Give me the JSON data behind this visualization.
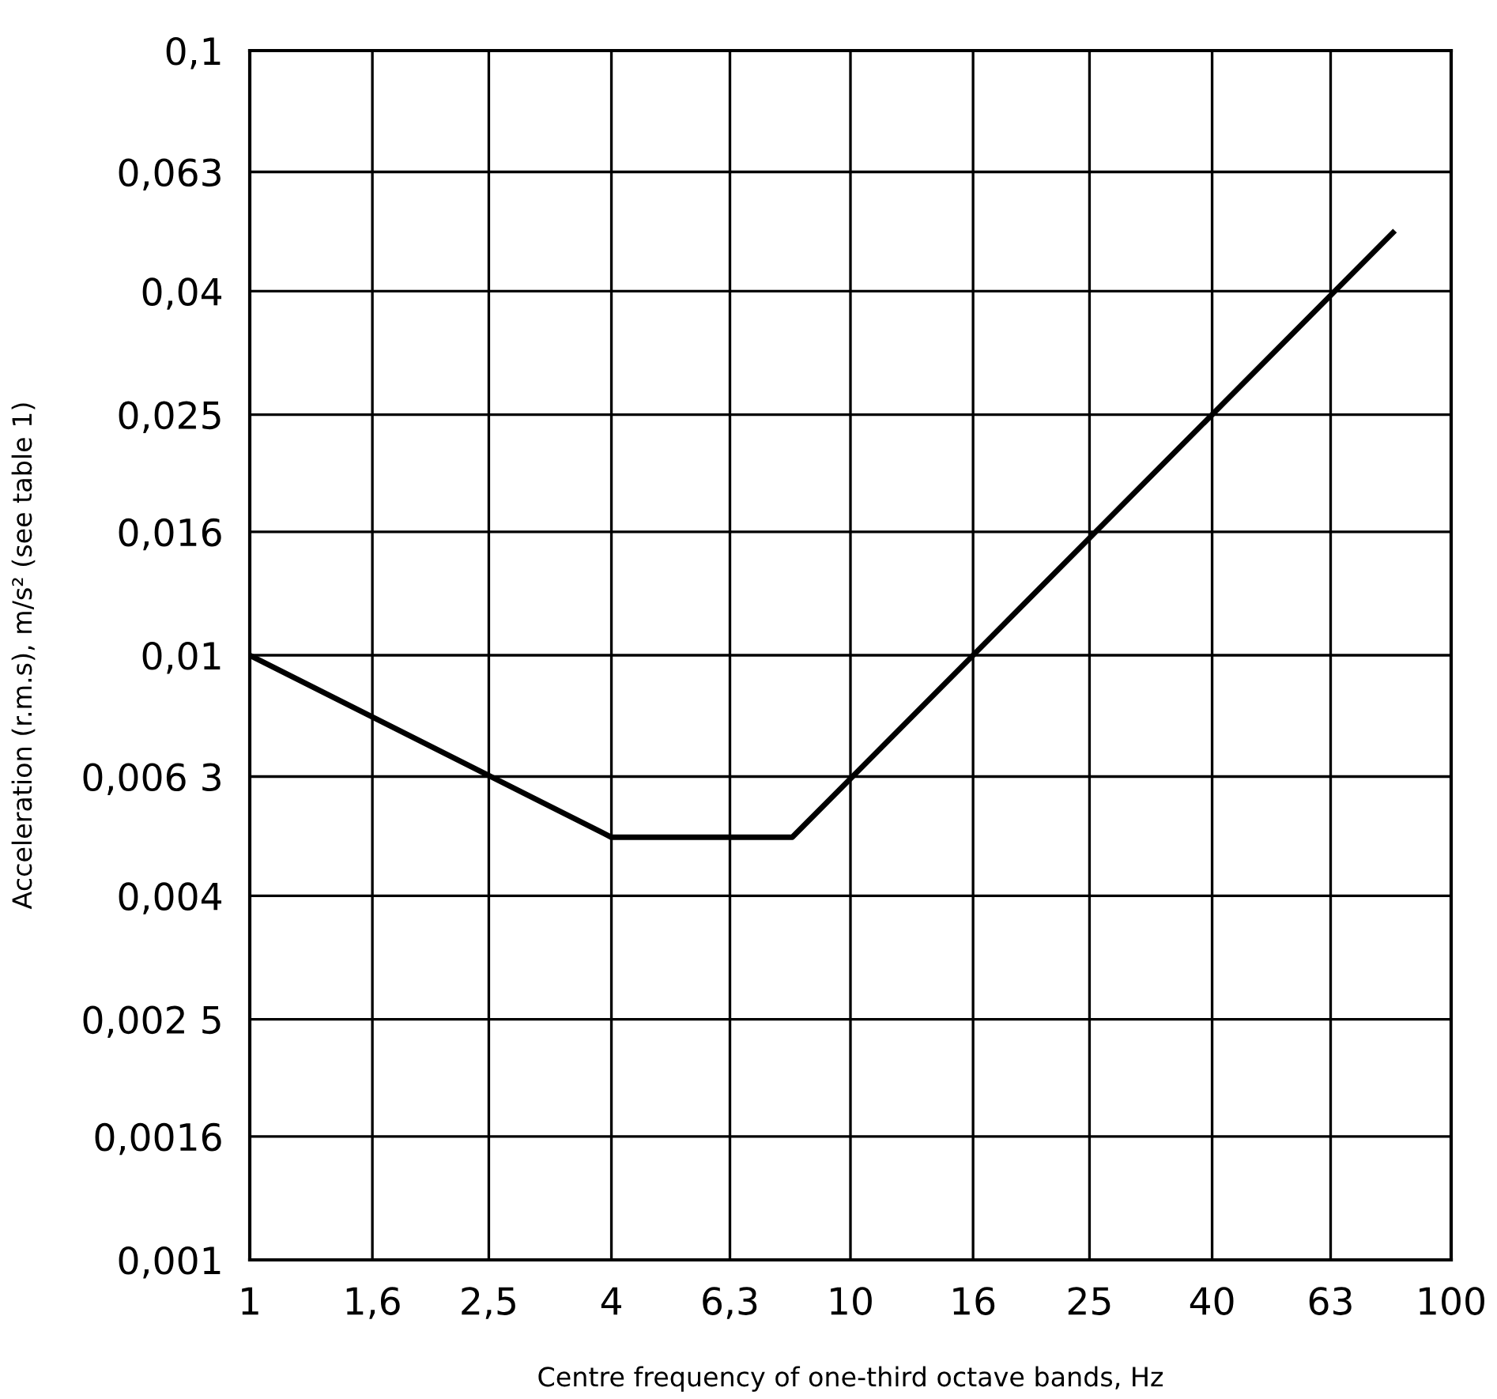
{
  "chart_data": {
    "type": "line",
    "xlabel": "Centre frequency of one-third octave bands, Hz",
    "ylabel": "Acceleration (r.m.s), m/s² (see table 1)",
    "log": "xy",
    "x": [
      1,
      4,
      8,
      80
    ],
    "series": [
      {
        "color": "#000000",
        "values": [
          0.01,
          0.005,
          0.005,
          0.05
        ]
      }
    ],
    "xlim": [
      1,
      100
    ],
    "ylim": [
      0.001,
      0.1
    ],
    "xticks": [
      1,
      {
        "value": 1.6,
        "label": "1,6"
      },
      {
        "value": 2.5,
        "label": "2,5"
      },
      4,
      {
        "value": 6.3,
        "label": "6,3"
      },
      10,
      16,
      25,
      40,
      63,
      100
    ],
    "yticks": [
      {
        "value": 0.001,
        "label": "0,001"
      },
      {
        "value": 0.0016,
        "label": "0,0016"
      },
      {
        "value": 0.0025,
        "label": "0,002 5"
      },
      {
        "value": 0.004,
        "label": "0,004"
      },
      {
        "value": 0.0063,
        "label": "0,006 3"
      },
      {
        "value": 0.01,
        "label": "0,01"
      },
      {
        "value": 0.016,
        "label": "0,016"
      },
      {
        "value": 0.025,
        "label": "0,025"
      },
      {
        "value": 0.04,
        "label": "0,04"
      },
      {
        "value": 0.063,
        "label": "0,063"
      },
      {
        "value": 0.1,
        "label": "0,1"
      }
    ],
    "grid": true,
    "marker": "none",
    "line_style": "solid"
  }
}
